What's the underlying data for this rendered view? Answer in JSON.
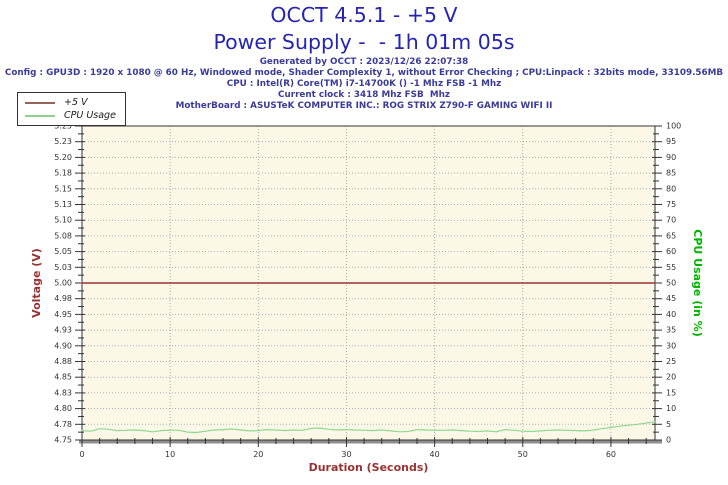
{
  "header": {
    "title_line1": "OCCT 4.5.1 - +5 V",
    "title_line2": "Power Supply -  - 1h 01m 05s",
    "generated": "Generated by OCCT : 2023/12/26 22:07:38",
    "config": "Config : GPU3D : 1920 x 1080 @ 60 Hz, Windowed mode, Shader Complexity 1, without Error Checking ; CPU:Linpack : 32bits mode, 33109.56MB",
    "cpu": "CPU : Intel(R) Core(TM) i7-14700K () -1 Mhz FSB -1 Mhz",
    "current_clock": "Current clock : 3418 Mhz FSB  Mhz",
    "motherboard": "MotherBoard : ASUSTeK COMPUTER INC.: ROG STRIX Z790-F GAMING WIFI II"
  },
  "legend": {
    "items": [
      {
        "label": "+5 V",
        "color": "#97655c"
      },
      {
        "label": "CPU Usage",
        "color": "#8fd08f"
      }
    ]
  },
  "colors": {
    "title_blue": "#2525b2",
    "info_navy": "#3b3b99",
    "voltage_red": "#993333",
    "cpu_green_label": "#00b400",
    "grid_gray": "#aaaaaa",
    "axis_dark": "#333333",
    "legend_border": "#333333"
  },
  "chart_data": {
    "type": "line",
    "xlabel": "Duration (Seconds)",
    "ylabel_left": "Voltage (V)",
    "ylabel_right": "CPU Usage (in %)",
    "xlim": [
      0,
      65
    ],
    "x_major_ticks": [
      0,
      10,
      20,
      30,
      40,
      50,
      60
    ],
    "x_minor_step": 2,
    "ylim_left": [
      4.75,
      5.25
    ],
    "ylim_right": [
      0,
      100
    ],
    "grid": true,
    "legend_position": "top-left",
    "plot_bg": "#fcf8e8",
    "y_left_tick_labels": [
      "5.25",
      "5.23",
      "5.20",
      "5.18",
      "5.15",
      "5.13",
      "5.10",
      "5.08",
      "5.05",
      "5.03",
      "5.00",
      "4.98",
      "4.95",
      "4.93",
      "4.90",
      "4.88",
      "4.85",
      "4.83",
      "4.80",
      "4.78",
      "4.75"
    ],
    "y_right_tick_labels": [
      "100",
      "95",
      "90",
      "85",
      "80",
      "75",
      "70",
      "65",
      "60",
      "55",
      "50",
      "45",
      "40",
      "35",
      "30",
      "25",
      "20",
      "15",
      "10",
      "5",
      "0"
    ],
    "series": [
      {
        "name": "+5 V",
        "axis": "left",
        "color": "#993333",
        "width": 1.4,
        "x": [
          0,
          65
        ],
        "values": [
          5.0,
          5.0
        ]
      },
      {
        "name": "CPU Usage",
        "axis": "right",
        "color": "#90d890",
        "width": 1.2,
        "x": [
          0,
          1,
          2,
          3,
          4,
          5,
          6,
          7,
          8,
          9,
          10,
          11,
          12,
          13,
          14,
          15,
          16,
          17,
          18,
          19,
          20,
          21,
          22,
          23,
          24,
          25,
          26,
          27,
          28,
          29,
          30,
          31,
          32,
          33,
          34,
          35,
          36,
          37,
          38,
          39,
          40,
          41,
          42,
          43,
          44,
          45,
          46,
          47,
          48,
          49,
          50,
          51,
          52,
          53,
          54,
          55,
          56,
          57,
          58,
          59,
          60,
          61,
          62,
          63,
          64,
          65
        ],
        "values": [
          3.0,
          2.8,
          3.6,
          3.4,
          3.0,
          3.1,
          3.2,
          3.0,
          2.6,
          3.0,
          3.2,
          3.1,
          2.5,
          2.4,
          2.8,
          3.2,
          3.3,
          3.5,
          3.2,
          2.9,
          3.0,
          3.3,
          3.2,
          3.0,
          3.2,
          3.1,
          3.7,
          3.8,
          3.4,
          3.2,
          3.3,
          3.2,
          3.1,
          3.0,
          3.2,
          2.9,
          2.6,
          2.7,
          3.3,
          3.2,
          3.1,
          3.1,
          3.2,
          3.0,
          2.8,
          2.7,
          2.9,
          2.6,
          3.3,
          3.1,
          2.8,
          2.7,
          2.9,
          3.1,
          3.2,
          3.1,
          3.0,
          2.9,
          3.2,
          3.6,
          4.0,
          4.4,
          4.7,
          5.0,
          5.4,
          5.8
        ]
      }
    ]
  }
}
